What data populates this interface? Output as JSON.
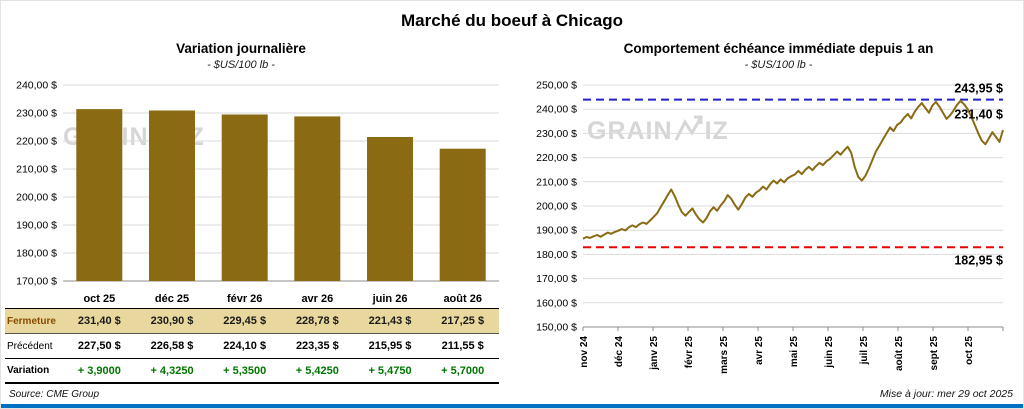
{
  "page": {
    "title": "Marché du boeuf à Chicago"
  },
  "watermark": {
    "left": "GRAIN",
    "right": "IZ"
  },
  "table": {
    "columns": [
      "oct 25",
      "déc 25",
      "févr 26",
      "avr 26",
      "juin 26",
      "août 26"
    ],
    "rows": [
      {
        "label": "Fermeture",
        "style": "fermeture",
        "values": [
          "231,40 $",
          "230,90 $",
          "229,45 $",
          "228,78 $",
          "221,43 $",
          "217,25 $"
        ]
      },
      {
        "label": "Précédent",
        "style": "precedent",
        "values": [
          "227,50 $",
          "226,58 $",
          "224,10 $",
          "223,35 $",
          "215,95 $",
          "211,55 $"
        ]
      },
      {
        "label": "Variation",
        "style": "variation",
        "values": [
          "+ 3,9000",
          "+ 4,3250",
          "+ 5,3500",
          "+ 5,4250",
          "+ 5,4750",
          "+ 5,7000"
        ]
      }
    ]
  },
  "chart_data": [
    {
      "type": "bar",
      "title": "Variation journalière",
      "subtitle": "- $US/100 lb -",
      "categories": [
        "oct 25",
        "déc 25",
        "févr 26",
        "avr 26",
        "juin 26",
        "août 26"
      ],
      "values": [
        231.4,
        230.9,
        229.45,
        228.78,
        221.43,
        217.25
      ],
      "ylim": [
        170,
        240
      ],
      "ytick_step": 10,
      "grid": true,
      "bar_color": "#8a6a12"
    },
    {
      "type": "line",
      "title": "Comportement échéance immédiate depuis 1 an",
      "subtitle": "- $US/100 lb -",
      "x_labels": [
        "nov 24",
        "déc 24",
        "janv 25",
        "févr 25",
        "mars 25",
        "avr 25",
        "mai 25",
        "juin 25",
        "juil 25",
        "août 25",
        "sept 25",
        "oct 25"
      ],
      "values": [
        186.5,
        187.2,
        186.8,
        187.5,
        188.0,
        187.3,
        188.2,
        189.0,
        188.5,
        189.3,
        189.8,
        190.5,
        189.9,
        191.2,
        192.0,
        191.3,
        192.5,
        193.2,
        192.6,
        194.0,
        195.5,
        197.0,
        199.5,
        202.0,
        204.5,
        206.8,
        204.0,
        200.5,
        197.5,
        196.0,
        197.5,
        199.0,
        196.5,
        194.5,
        193.2,
        195.0,
        197.8,
        199.5,
        198.0,
        200.2,
        202.0,
        204.5,
        203.0,
        200.5,
        198.5,
        200.8,
        203.5,
        205.0,
        203.8,
        205.5,
        206.5,
        208.0,
        206.8,
        209.0,
        210.5,
        209.3,
        211.0,
        209.8,
        211.5,
        212.3,
        213.0,
        214.5,
        213.2,
        215.0,
        216.2,
        214.8,
        216.5,
        217.8,
        216.9,
        218.5,
        219.5,
        221.0,
        222.5,
        221.2,
        223.0,
        224.5,
        222.0,
        216.0,
        212.0,
        210.5,
        212.5,
        215.5,
        219.0,
        222.5,
        225.0,
        227.5,
        230.0,
        232.5,
        231.0,
        233.5,
        234.5,
        236.5,
        238.0,
        236.2,
        239.0,
        241.0,
        242.5,
        240.5,
        238.5,
        241.5,
        243.0,
        241.0,
        238.5,
        236.0,
        237.5,
        239.5,
        241.8,
        243.5,
        242.0,
        240.0,
        237.0,
        233.5,
        230.0,
        227.0,
        225.5,
        228.0,
        230.5,
        228.5,
        226.5,
        231.4
      ],
      "ylim": [
        150,
        250
      ],
      "ytick_step": 10,
      "grid": true,
      "legend": "none",
      "line_color": "#8a6a12",
      "high_line": {
        "value": 243.95,
        "label": "243,95 $",
        "color": "#2020cc"
      },
      "low_line": {
        "value": 182.95,
        "label": "182,95 $",
        "color": "#ee0000"
      },
      "last_label": {
        "value": 231.4,
        "label": "231,40 $",
        "color": "#000000"
      }
    }
  ],
  "footer": {
    "source": "Source: CME Group",
    "updated": "Mise à jour: mer 29 oct 2025"
  },
  "colors": {
    "accent_gold": "#8a6a12",
    "high_blue": "#2020cc",
    "low_red": "#ee0000",
    "fermeture_row_bg": "#e8d89e",
    "variation_green": "#007500",
    "bottom_bar": "#0070c0"
  }
}
